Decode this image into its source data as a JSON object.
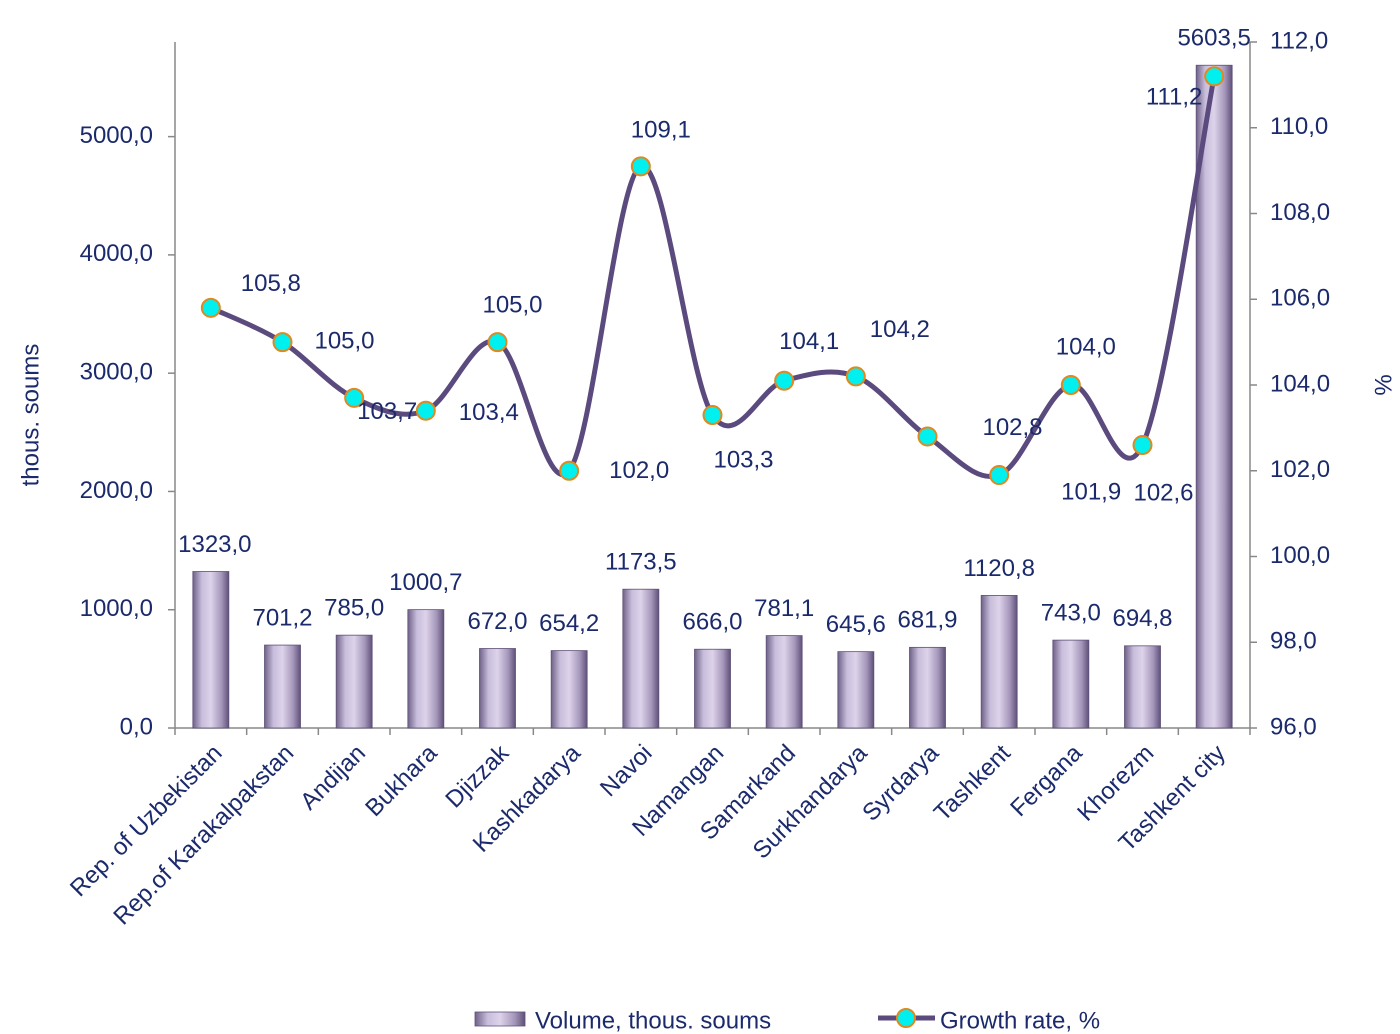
{
  "chart_data": {
    "type": "bar-line",
    "categories": [
      "Rep. of Uzbekistan",
      "Rep.of Karakalpakstan",
      "Andijan",
      "Bukhara",
      "Djizzak",
      "Kashkadarya",
      "Navoi",
      "Namangan",
      "Samarkand",
      "Surkhandarya",
      "Syrdarya",
      "Tashkent",
      "Fergana",
      "Khorezm",
      "Tashkent city"
    ],
    "y_label": "thous. soums",
    "y2_label": "%",
    "ylim": [
      0,
      5800
    ],
    "yticks": [
      {
        "value": 0,
        "label": "0,0"
      },
      {
        "value": 1000,
        "label": "1000,0"
      },
      {
        "value": 2000,
        "label": "2000,0"
      },
      {
        "value": 3000,
        "label": "3000,0"
      },
      {
        "value": 4000,
        "label": "4000,0"
      },
      {
        "value": 5000,
        "label": "5000,0"
      }
    ],
    "y2lim": [
      96,
      112
    ],
    "y2ticks": [
      {
        "value": 96,
        "label": "96,0"
      },
      {
        "value": 98,
        "label": "98,0"
      },
      {
        "value": 100,
        "label": "100,0"
      },
      {
        "value": 102,
        "label": "102,0"
      },
      {
        "value": 104,
        "label": "104,0"
      },
      {
        "value": 106,
        "label": "106,0"
      },
      {
        "value": 108,
        "label": "108,0"
      },
      {
        "value": 110,
        "label": "110,0"
      },
      {
        "value": 112,
        "label": "112,0"
      }
    ],
    "legend": "bottom",
    "series": [
      {
        "name": "Volume, thous. soums",
        "type": "bar",
        "color": "#b3a6c8",
        "values": [
          1323.0,
          701.2,
          785.0,
          1000.7,
          672.0,
          654.2,
          1173.5,
          666.0,
          781.1,
          645.6,
          681.9,
          1120.8,
          743.0,
          694.8,
          5603.5
        ],
        "value_labels": [
          "1323,0",
          "701,2",
          "785,0",
          "1000,7",
          "672,0",
          "654,2",
          "1173,5",
          "666,0",
          "781,1",
          "645,6",
          "681,9",
          "1120,8",
          "743,0",
          "694,8",
          "5603,5"
        ]
      },
      {
        "name": "Growth rate, %",
        "type": "line",
        "axis": "y2",
        "color": "#5b4a7e",
        "marker_color": "#00f0f0",
        "marker_edge": "#e0891e",
        "values": [
          105.8,
          105.0,
          103.7,
          103.4,
          105.0,
          102.0,
          109.1,
          103.3,
          104.1,
          104.2,
          102.8,
          101.9,
          104.0,
          102.6,
          111.2
        ],
        "value_labels": [
          "105,8",
          "105,0",
          "103,7",
          "103,4",
          "105,0",
          "102,0",
          "109,1",
          "103,3",
          "104,1",
          "104,2",
          "102,8",
          "101,9",
          "104,0",
          "102,6",
          "111,2"
        ]
      }
    ]
  }
}
